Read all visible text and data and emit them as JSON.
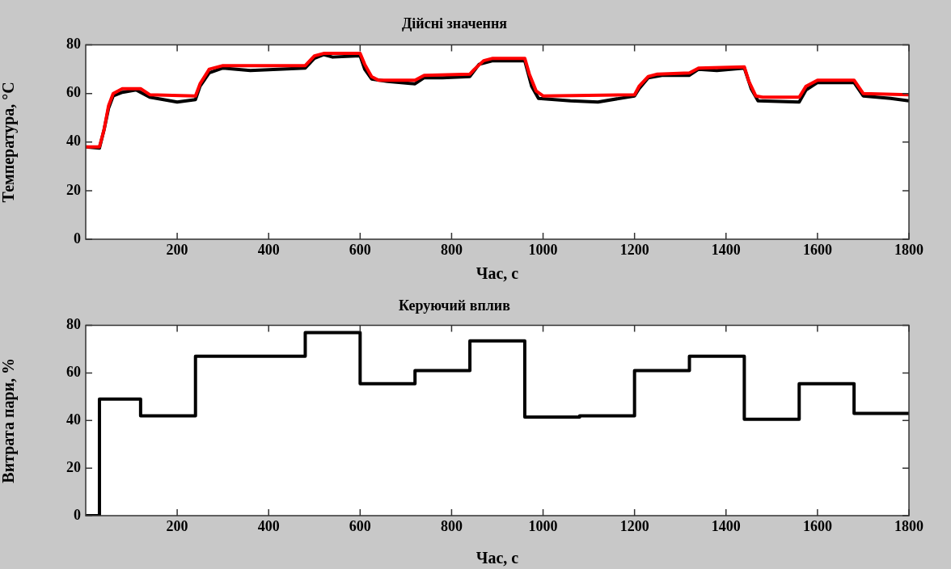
{
  "chart_data": [
    {
      "type": "line",
      "title": "Дійсні значення",
      "xlabel": "Час, с",
      "ylabel": "Температура, °C",
      "xlim": [
        0,
        1800
      ],
      "xticks": [
        200,
        400,
        600,
        800,
        1000,
        1200,
        1400,
        1600,
        1800
      ],
      "ylim": [
        0,
        80
      ],
      "yticks": [
        0,
        20,
        40,
        60,
        80
      ],
      "grid": false,
      "legend": false,
      "series": [
        {
          "color": "#000000",
          "x": [
            0,
            30,
            40,
            50,
            60,
            80,
            110,
            140,
            200,
            240,
            250,
            270,
            300,
            360,
            480,
            500,
            520,
            540,
            600,
            610,
            625,
            660,
            720,
            740,
            780,
            840,
            860,
            890,
            960,
            975,
            990,
            1060,
            1120,
            1200,
            1210,
            1230,
            1260,
            1320,
            1340,
            1380,
            1440,
            1455,
            1470,
            1560,
            1575,
            1600,
            1680,
            1700,
            1760,
            1800
          ],
          "values": [
            38,
            37.5,
            45,
            54,
            59,
            60.5,
            61.5,
            58.5,
            56.5,
            57.5,
            63,
            68.5,
            70.5,
            69.5,
            70.5,
            74.5,
            76,
            75,
            75.5,
            70,
            66,
            65,
            64,
            66.5,
            66.5,
            67,
            72,
            73.5,
            73.5,
            63,
            58,
            57,
            56.5,
            59,
            62,
            66.5,
            67.5,
            67.5,
            70,
            69.5,
            70.5,
            62,
            57,
            56.5,
            61.5,
            64.5,
            64.5,
            59,
            58,
            57
          ]
        },
        {
          "color": "#ff0000",
          "x": [
            0,
            30,
            40,
            50,
            60,
            80,
            120,
            140,
            240,
            250,
            270,
            300,
            480,
            500,
            520,
            600,
            610,
            625,
            640,
            720,
            740,
            840,
            850,
            870,
            890,
            960,
            970,
            985,
            1000,
            1200,
            1210,
            1230,
            1250,
            1320,
            1340,
            1440,
            1450,
            1465,
            1480,
            1560,
            1575,
            1600,
            1680,
            1700,
            1800
          ],
          "values": [
            38,
            38,
            45,
            55,
            60,
            62,
            62,
            59.5,
            59,
            64,
            70,
            71.5,
            71.5,
            75.5,
            76.5,
            76.5,
            72,
            67,
            65.5,
            65.5,
            67.5,
            68,
            70,
            73.5,
            74.5,
            74.5,
            68,
            61,
            59,
            59.5,
            63,
            67,
            68,
            68.5,
            70.5,
            71,
            65,
            59,
            58.5,
            58.5,
            63,
            65.5,
            65.5,
            60,
            59.5
          ]
        }
      ]
    },
    {
      "type": "step",
      "title": "Керуючий вплив",
      "xlabel": "Час, с",
      "ylabel": "Витрата пари, %",
      "xlim": [
        0,
        1800
      ],
      "xticks": [
        200,
        400,
        600,
        800,
        1000,
        1200,
        1400,
        1600,
        1800
      ],
      "ylim": [
        0,
        80
      ],
      "yticks": [
        0,
        20,
        40,
        60,
        80
      ],
      "grid": false,
      "legend": false,
      "series": [
        {
          "color": "#000000",
          "x": [
            0,
            30,
            120,
            240,
            480,
            600,
            720,
            840,
            960,
            1080,
            1200,
            1320,
            1440,
            1560,
            1680,
            1800
          ],
          "values": [
            0,
            49,
            42,
            67,
            77,
            55.5,
            61,
            73.5,
            41.5,
            42,
            61,
            67,
            40.5,
            55.5,
            43,
            43
          ]
        }
      ]
    }
  ]
}
